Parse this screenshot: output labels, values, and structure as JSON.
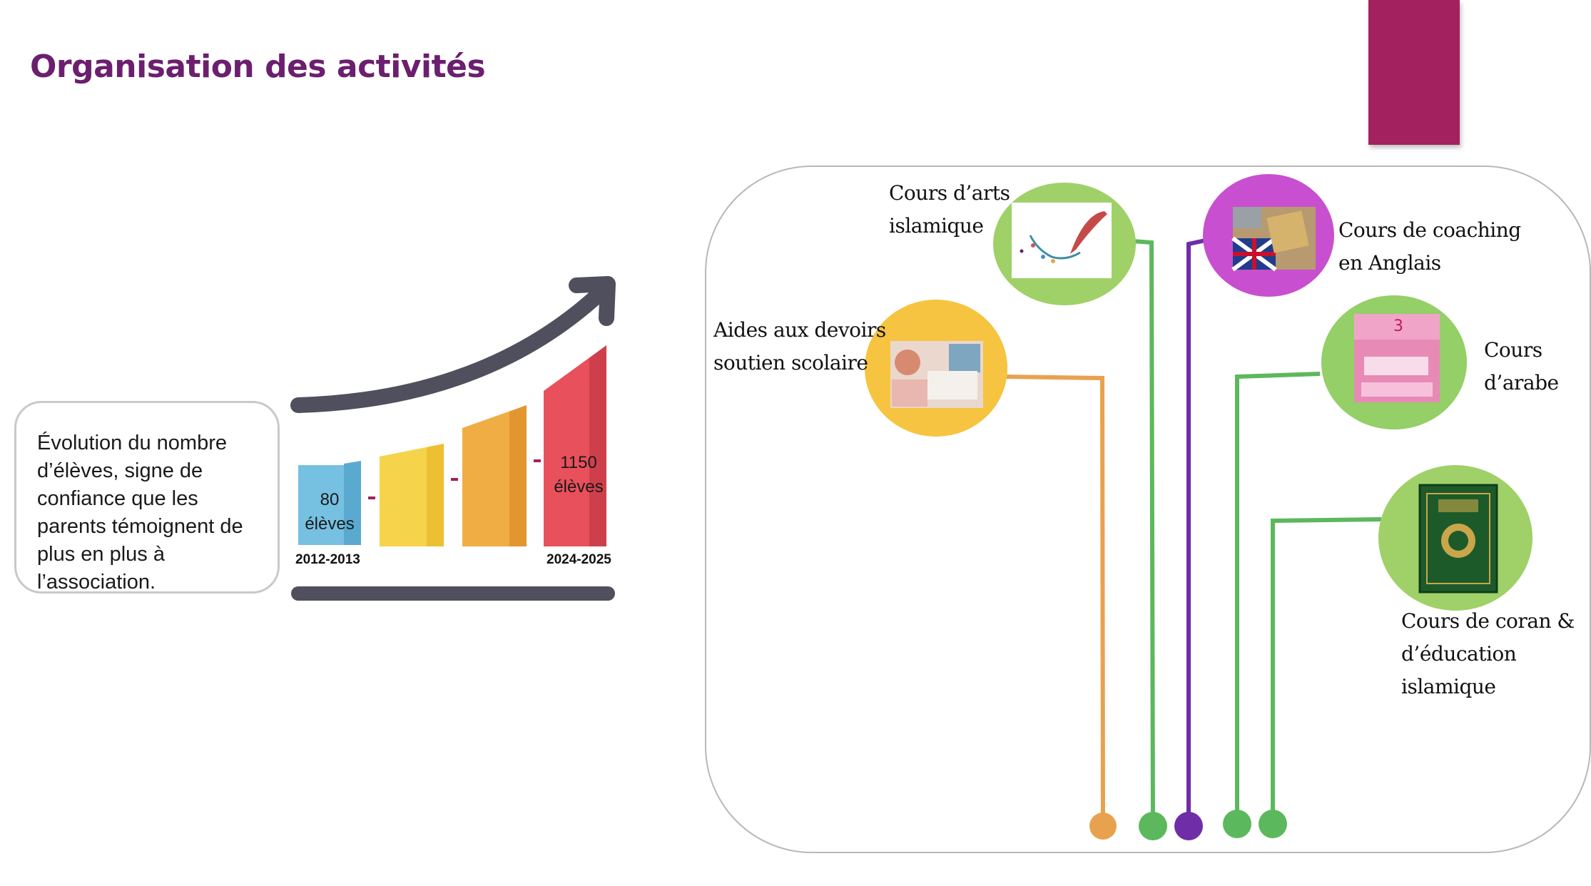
{
  "title": "Organisation des activités",
  "colors": {
    "title": "#6b1f6e",
    "accent": "#a3215e",
    "orange_line": "#e8a24f",
    "green_line": "#5cb85c",
    "purple_line": "#6f2da8"
  },
  "evolution": {
    "text": "Évolution du nombre d’élèves, signe de confiance que les parents témoignent de plus en plus à l’association.",
    "first_count": "80",
    "first_unit": "élèves",
    "last_count": "1150",
    "last_unit": "élèves",
    "start_year": "2012-2013",
    "end_year": "2024-2025"
  },
  "chart_data": {
    "type": "bar",
    "categories": [
      "2012-2013",
      "",
      "",
      "2024-2025"
    ],
    "values": [
      80,
      null,
      null,
      1150
    ],
    "data_labels": [
      "80 élèves",
      "",
      "",
      "1150 élèves"
    ],
    "trend": "up-arrow"
  },
  "activities": {
    "arts": {
      "line1": "Cours d’arts",
      "line2": "islamique",
      "icon": "calligraphy-feather-icon"
    },
    "devoirs": {
      "line1": "Aides aux devoirs",
      "line2": "soutien scolaire",
      "icon": "homework-photo-icon"
    },
    "anglais": {
      "line1": "Cours de coaching",
      "line2": "en Anglais",
      "icon": "uk-flag-books-icon"
    },
    "arabe": {
      "line1": "Cours",
      "line2": "d’arabe",
      "icon": "arabic-book-icon"
    },
    "coran": {
      "line1": "Cours de coran &",
      "line2": "d’éducation islamique",
      "icon": "quran-book-icon"
    }
  }
}
